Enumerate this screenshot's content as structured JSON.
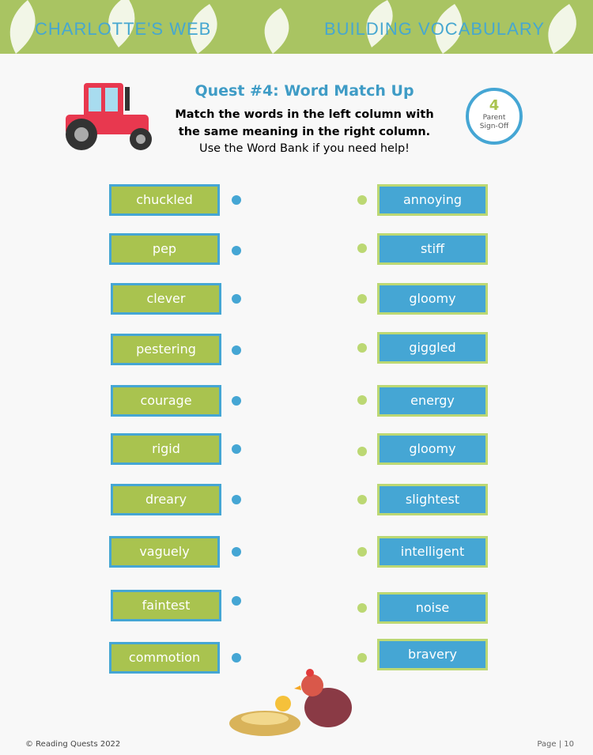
{
  "header": {
    "left": "CHARLOTTE'S WEB",
    "right": "BUILDING VOCABULARY"
  },
  "quest": {
    "title": "Quest #4: Word Match Up",
    "instructions": [
      "Match the words in the left column with",
      "the same meaning in the right column."
    ],
    "help": "Use the Word Bank if you need help!"
  },
  "badge": {
    "number": "4",
    "label": [
      "Parent",
      "Sign-Off"
    ]
  },
  "left_words": [
    "chuckled",
    "pep",
    "clever",
    "pestering",
    "courage",
    "rigid",
    "dreary",
    "vaguely",
    "faintest",
    "commotion"
  ],
  "right_words": [
    "annoying",
    "stiff",
    "gloomy",
    "giggled",
    "energy",
    "gloomy",
    "slightest",
    "intelligent",
    "noise",
    "bravery"
  ],
  "footer": {
    "copyright": "© Reading Quests 2022",
    "page": "Page | 10"
  }
}
